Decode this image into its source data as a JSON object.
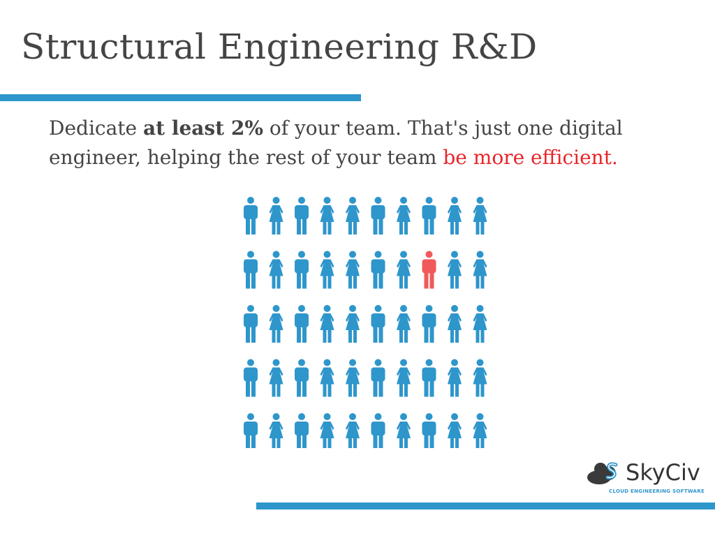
{
  "slide": {
    "title": "Structural Engineering R&D",
    "body": {
      "part1": "Dedicate ",
      "bold": "at least 2%",
      "part2": " of your team. That's just one digital engineer, helping the rest of your team ",
      "highlight": "be more efficient."
    }
  },
  "infographic": {
    "rows": 5,
    "columns": 10,
    "column_pattern": [
      "man",
      "woman",
      "man",
      "woman",
      "woman",
      "man",
      "woman",
      "man",
      "woman",
      "woman"
    ],
    "highlighted": {
      "row": 2,
      "column": 8
    },
    "colors": {
      "base": "#2e96cb",
      "highlight": "#f15a5a"
    }
  },
  "logo": {
    "name": "SkyCiv",
    "tagline": "CLOUD ENGINEERING SOFTWARE",
    "icon": "cloud-s-icon"
  },
  "colors": {
    "accent": "#2e96cb",
    "text": "#444444",
    "highlight_text": "#e8262a"
  }
}
